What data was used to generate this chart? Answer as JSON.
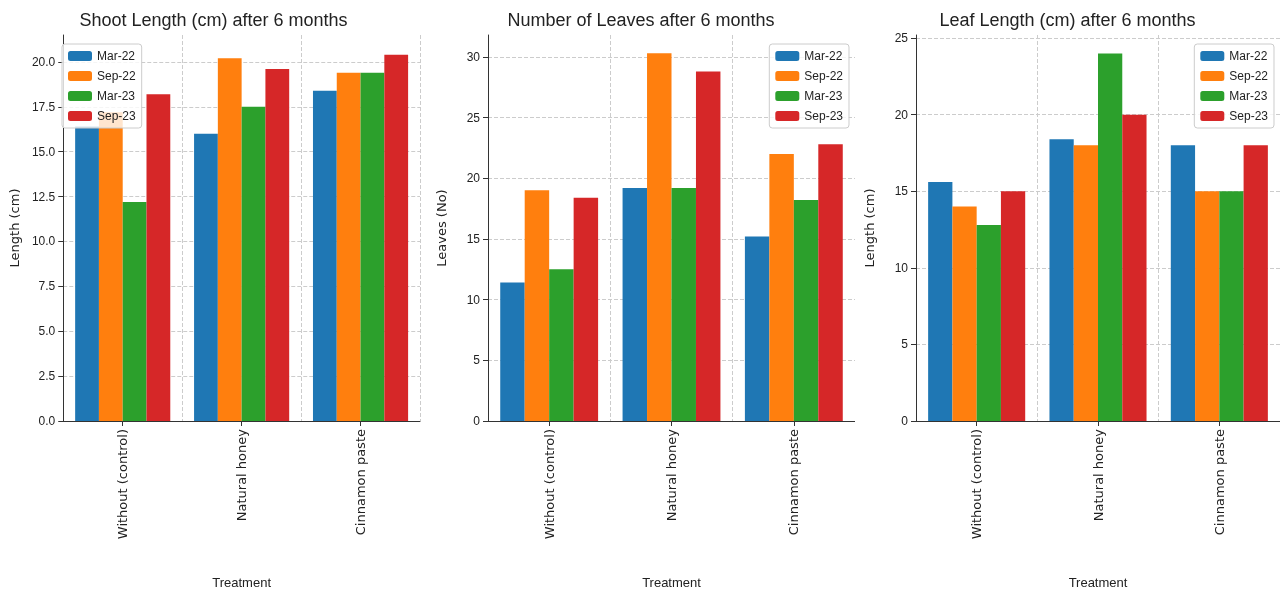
{
  "chart_data": [
    {
      "type": "bar",
      "title": "Shoot Length (cm) after 6 months",
      "xlabel": "Treatment",
      "ylabel": "Length (cm)",
      "categories": [
        "Without (control)",
        "Natural honey",
        "Cinnamon paste"
      ],
      "series": [
        {
          "name": "Mar-22",
          "color": "#1f77b4",
          "values": [
            16.4,
            16.0,
            18.4
          ]
        },
        {
          "name": "Sep-22",
          "color": "#ff7f0e",
          "values": [
            17.2,
            20.2,
            19.4
          ]
        },
        {
          "name": "Mar-23",
          "color": "#2ca02c",
          "values": [
            12.2,
            17.5,
            19.4
          ]
        },
        {
          "name": "Sep-23",
          "color": "#d62728",
          "values": [
            18.2,
            19.6,
            20.4
          ]
        }
      ],
      "ylim": [
        0,
        21.5
      ],
      "yticks": [
        {
          "value": 0,
          "label": "0.0"
        },
        2.5,
        {
          "value": 5,
          "label": "5.0"
        },
        7.5,
        {
          "value": 10,
          "label": "10.0"
        },
        12.5,
        {
          "value": 15,
          "label": "15.0"
        },
        17.5,
        {
          "value": 20,
          "label": "20.0"
        }
      ],
      "grid": true,
      "legend": "top left"
    },
    {
      "type": "bar",
      "title": "Number of Leaves after 6 months",
      "xlabel": "Treatment",
      "ylabel": "Leaves (No)",
      "categories": [
        "Without (control)",
        "Natural honey",
        "Cinnamon paste"
      ],
      "series": [
        {
          "name": "Mar-22",
          "color": "#1f77b4",
          "values": [
            11.4,
            19.2,
            15.2
          ]
        },
        {
          "name": "Sep-22",
          "color": "#ff7f0e",
          "values": [
            19.0,
            30.3,
            22.0
          ]
        },
        {
          "name": "Mar-23",
          "color": "#2ca02c",
          "values": [
            12.5,
            19.2,
            18.2
          ]
        },
        {
          "name": "Sep-23",
          "color": "#d62728",
          "values": [
            18.4,
            28.8,
            22.8
          ]
        }
      ],
      "ylim": [
        0,
        31.8
      ],
      "yticks": [
        0,
        5,
        10,
        15,
        20,
        25,
        30
      ],
      "grid": true,
      "legend": "top right"
    },
    {
      "type": "bar",
      "title": "Leaf Length (cm) after 6 months",
      "xlabel": "Treatment",
      "ylabel": "Length (cm)",
      "categories": [
        "Without (control)",
        "Natural honey",
        "Cinnamon paste"
      ],
      "series": [
        {
          "name": "Mar-22",
          "color": "#1f77b4",
          "values": [
            15.6,
            18.4,
            18.0
          ]
        },
        {
          "name": "Sep-22",
          "color": "#ff7f0e",
          "values": [
            14.0,
            18.0,
            15.0
          ]
        },
        {
          "name": "Mar-23",
          "color": "#2ca02c",
          "values": [
            12.8,
            24.0,
            15.0
          ]
        },
        {
          "name": "Sep-23",
          "color": "#d62728",
          "values": [
            15.0,
            20.0,
            18.0
          ]
        }
      ],
      "ylim": [
        0,
        25.2
      ],
      "yticks": [
        0,
        5,
        10,
        15,
        20,
        25
      ],
      "grid": true,
      "legend": "top right"
    }
  ]
}
